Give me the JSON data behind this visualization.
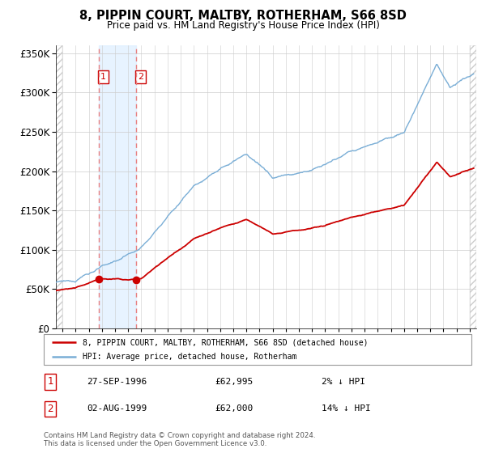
{
  "title": "8, PIPPIN COURT, MALTBY, ROTHERHAM, S66 8SD",
  "subtitle": "Price paid vs. HM Land Registry's House Price Index (HPI)",
  "sale1_date": "27-SEP-1996",
  "sale1_price": 62995,
  "sale1_label": "2% ↓ HPI",
  "sale2_date": "02-AUG-1999",
  "sale2_price": 62000,
  "sale2_label": "14% ↓ HPI",
  "sale1_x": 1996.74,
  "sale2_x": 1999.58,
  "legend_line1": "8, PIPPIN COURT, MALTBY, ROTHERHAM, S66 8SD (detached house)",
  "legend_line2": "HPI: Average price, detached house, Rotherham",
  "footnote": "Contains HM Land Registry data © Crown copyright and database right 2024.\nThis data is licensed under the Open Government Licence v3.0.",
  "hpi_color": "#7aaed6",
  "price_color": "#cc0000",
  "dashed_color": "#e88080",
  "ylim_min": 0,
  "ylim_max": 360000,
  "xlim_min": 1993.5,
  "xlim_max": 2025.5,
  "hatch_color": "#bbbbbb",
  "shade_color": "#ddeeff"
}
